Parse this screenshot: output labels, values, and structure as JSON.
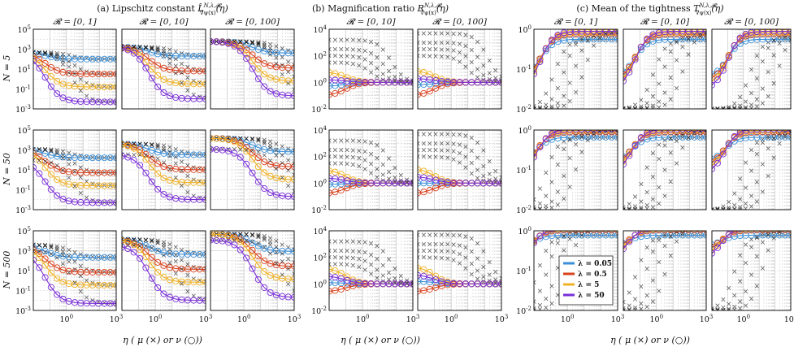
{
  "chart_data": [
    {
      "type": "line",
      "panel_group": "a",
      "title": "(a) Lipschitz constant L̂^{N,λ,𝓡}_{∇ψ(x)}(η)",
      "xlabel": "η  (μ(×) or ν(○))",
      "ylabel_rows": [
        "N = 5",
        "N = 50",
        "N = 500"
      ],
      "columns": [
        "𝓡 = [0, 1]",
        "𝓡 = [0, 10]",
        "𝓡 = [0, 100]"
      ],
      "xscale": "log",
      "yscale": "log",
      "xlim": [
        0.01,
        1000
      ],
      "ylim": [
        0.001,
        100000
      ],
      "yticks": [
        "10^5",
        "10^3",
        "10^1",
        "10^-1",
        "10^-3"
      ],
      "xticks": [
        "10^0",
        "10^3"
      ],
      "grid": true
    },
    {
      "type": "line",
      "panel_group": "b",
      "title": "(b) Magnification ratio R^{N,λ,𝓡}_{∇ψ(x)}(η)",
      "xlabel": "η  (μ(×) or ν(○))",
      "columns": [
        "𝓡 = [0, 10]",
        "𝓡 = [0, 100]"
      ],
      "xscale": "log",
      "yscale": "log",
      "xlim": [
        0.01,
        1000
      ],
      "ylim": [
        0.01,
        10000
      ],
      "yticks": [
        "10^4",
        "10^2",
        "10^0",
        "10^-2"
      ],
      "xticks": [
        "10^0",
        "10^3"
      ],
      "grid": true
    },
    {
      "type": "line",
      "panel_group": "c",
      "title": "(c) Mean of the tightness T^{N,λ,𝓡}_{∇ψ(x)}(η)",
      "xlabel": "η  (μ(×) or ν(○))",
      "columns": [
        "𝓡 = [0, 1]",
        "𝓡 = [0, 10]",
        "𝓡 = [0, 100]"
      ],
      "xscale": "log",
      "yscale": "log",
      "xlim": [
        0.01,
        1000
      ],
      "ylim": [
        0.01,
        1
      ],
      "yticks": [
        "10^0",
        "10^-1",
        "10^-2"
      ],
      "xticks": [
        "10^0",
        "10^3"
      ],
      "grid": true,
      "legend": {
        "placement": "inside bottom-left of N = 500, 𝓡 = [0, 1] panel",
        "entries": [
          "λ = 0.05",
          "λ = 0.5",
          "λ = 5",
          "λ = 50"
        ]
      }
    }
  ],
  "series_colors": {
    "λ = 0.05": "#3a8fd9",
    "λ = 0.5": "#d9401c",
    "λ = 5": "#f0b023",
    "λ = 50": "#7a2fd8"
  },
  "markers": {
    "mu": "×",
    "nu": "○"
  },
  "ui": {
    "title_a": "(a) Lipschitz constant",
    "title_b": "(b) Magnification ratio",
    "title_c": "(c) Mean of the tightness",
    "sym_a": "L̂",
    "sym_b": "R",
    "sym_c": "T",
    "supsub": "N,λ,𝓡",
    "arg": "(η)",
    "sub": "∇ψ(x)",
    "xlabel": "η  ( μ (×) or ν (○))",
    "rows": [
      "N = 5",
      "N = 50",
      "N = 500"
    ]
  }
}
